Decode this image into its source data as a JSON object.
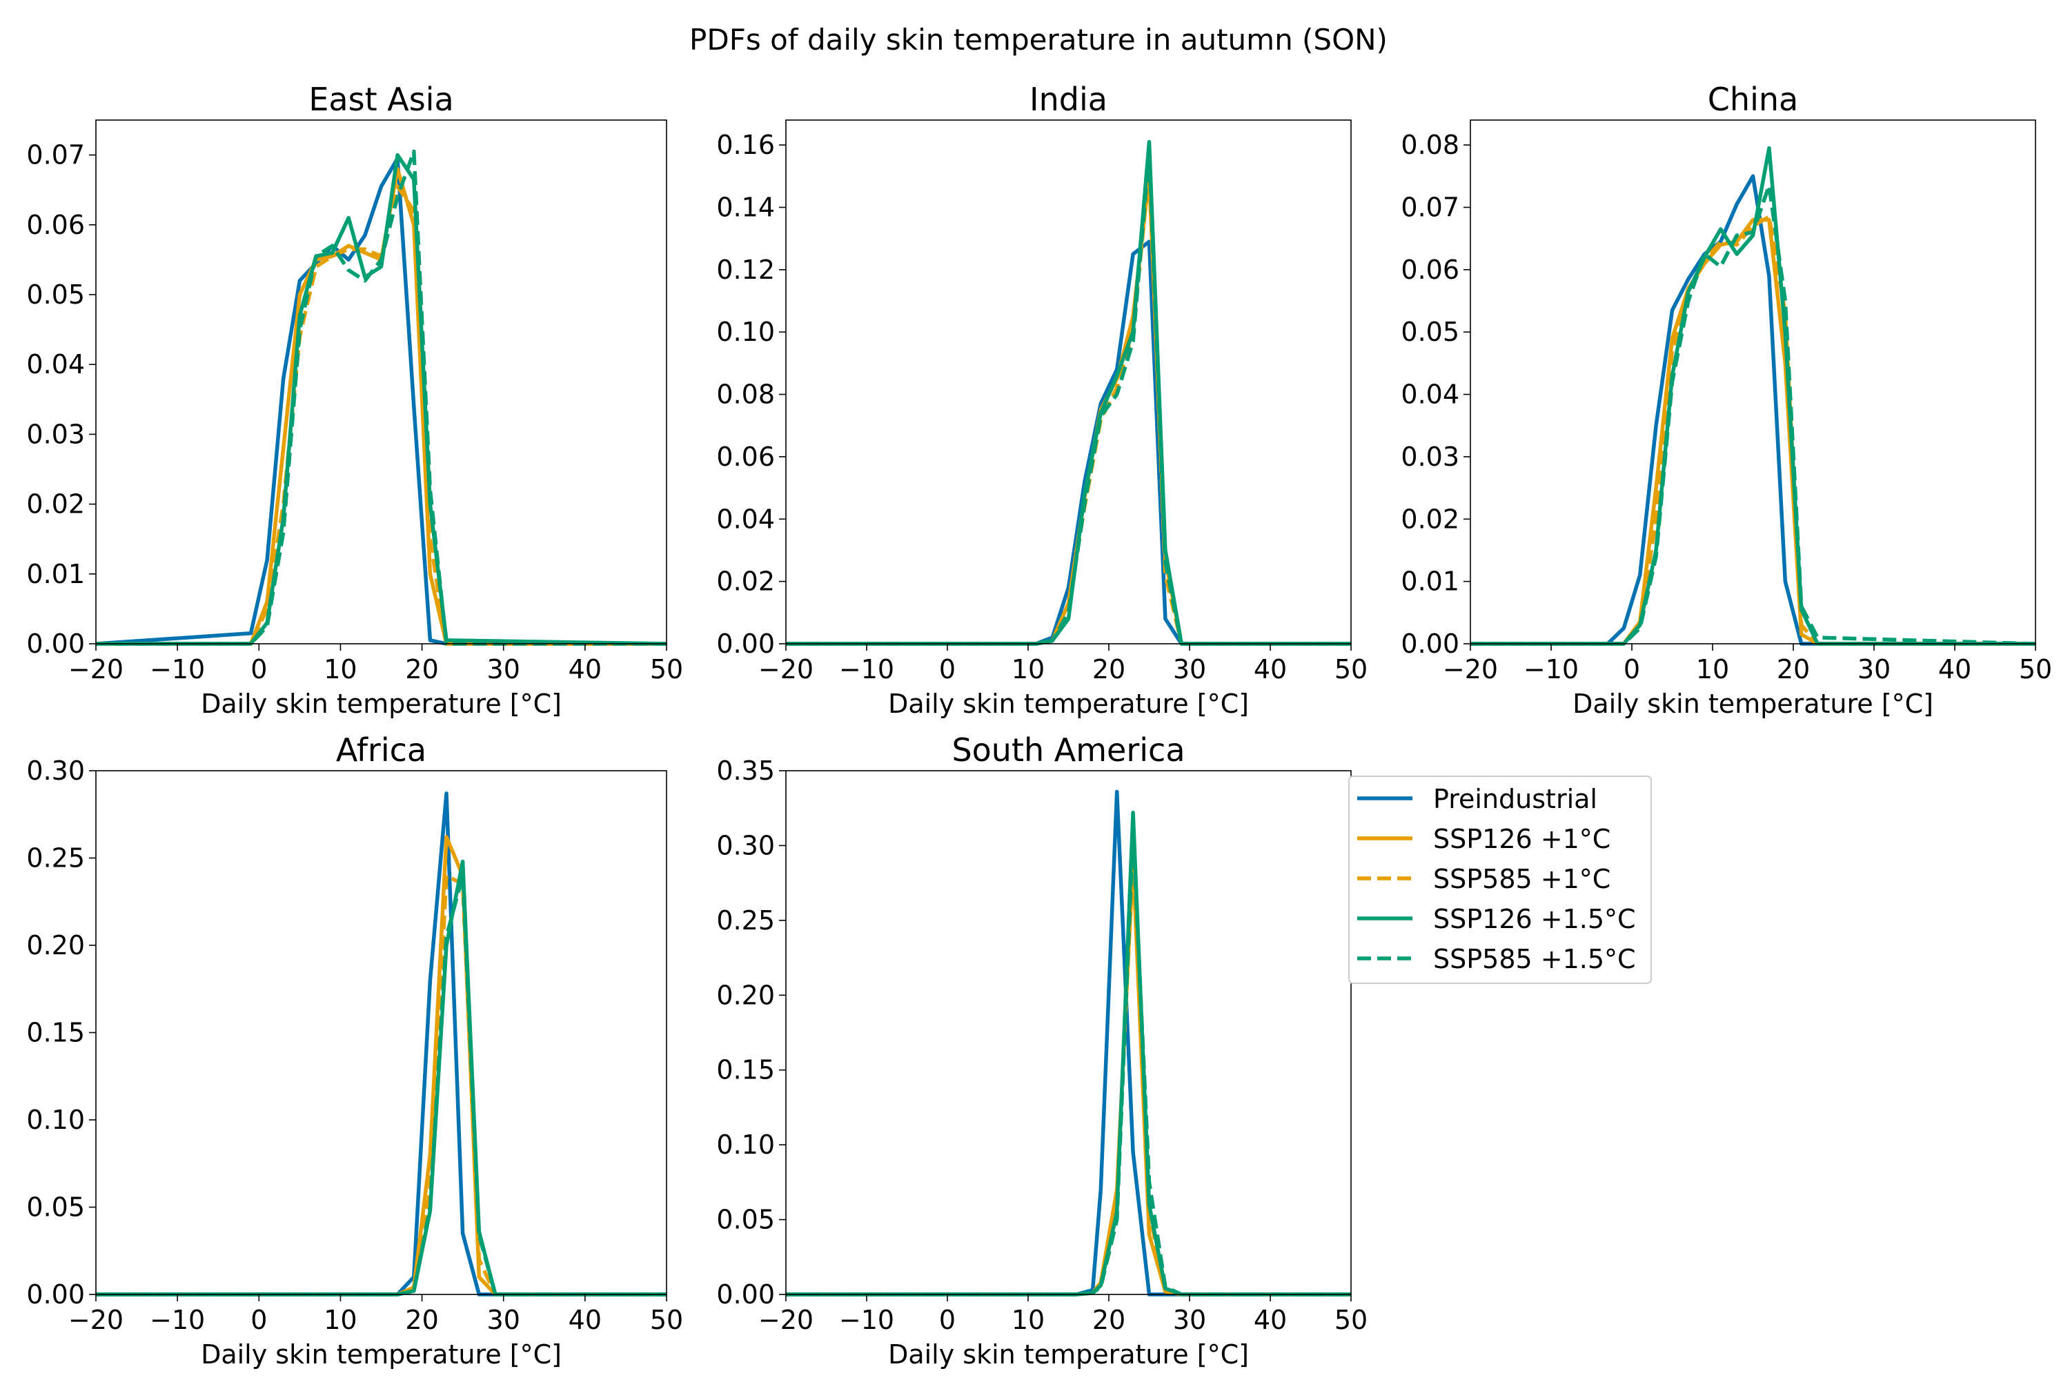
{
  "figure": {
    "suptitle": "PDFs of daily skin temperature in autumn (SON)"
  },
  "legend": {
    "entries": [
      {
        "label": "Preindustrial",
        "color": "#0072b2",
        "dash": false
      },
      {
        "label": "SSP126 +1°C",
        "color": "#e69f00",
        "dash": false
      },
      {
        "label": "SSP585 +1°C",
        "color": "#e69f00",
        "dash": true
      },
      {
        "label": "SSP126 +1.5°C",
        "color": "#009e73",
        "dash": false
      },
      {
        "label": "SSP585 +1.5°C",
        "color": "#009e73",
        "dash": true
      }
    ]
  },
  "chart_data": [
    {
      "type": "line",
      "title": "East Asia",
      "xlabel": "Daily skin temperature [°C]",
      "xlim": [
        -20,
        50
      ],
      "ylim": [
        0,
        0.075
      ],
      "xticks": [
        -20,
        -10,
        0,
        10,
        20,
        30,
        40,
        50
      ],
      "xticklabels": [
        "−20",
        "−10",
        "0",
        "10",
        "20",
        "30",
        "40",
        "50"
      ],
      "yticks": [
        0,
        0.01,
        0.02,
        0.03,
        0.04,
        0.05,
        0.06,
        0.07
      ],
      "yticklabels": [
        "0.00",
        "0.01",
        "0.02",
        "0.03",
        "0.04",
        "0.05",
        "0.06",
        "0.07"
      ],
      "x": [
        -20,
        -1,
        1,
        3,
        5,
        7,
        9,
        11,
        13,
        15,
        17,
        19,
        21,
        23,
        50
      ],
      "series": [
        {
          "name": "Preindustrial",
          "values": [
            0,
            0.0015,
            0.012,
            0.038,
            0.052,
            0.0545,
            0.057,
            0.055,
            0.0585,
            0.0655,
            0.0695,
            0.034,
            0.0005,
            0,
            0
          ]
        },
        {
          "name": "SSP126 +1°C",
          "values": [
            0,
            0,
            0.006,
            0.028,
            0.05,
            0.055,
            0.0555,
            0.057,
            0.056,
            0.055,
            0.068,
            0.06,
            0.01,
            0,
            0
          ]
        },
        {
          "name": "SSP585 +1°C",
          "values": [
            0,
            0,
            0.005,
            0.02,
            0.044,
            0.054,
            0.0555,
            0.0565,
            0.0565,
            0.0555,
            0.0655,
            0.062,
            0.015,
            0,
            0
          ]
        },
        {
          "name": "SSP126 +1.5°C",
          "values": [
            0,
            0,
            0.003,
            0.018,
            0.047,
            0.0555,
            0.056,
            0.061,
            0.0525,
            0.054,
            0.07,
            0.0665,
            0.02,
            0.0005,
            0
          ]
        },
        {
          "name": "SSP585 +1.5°C",
          "values": [
            0,
            0,
            0.0025,
            0.016,
            0.045,
            0.0555,
            0.057,
            0.0535,
            0.052,
            0.055,
            0.064,
            0.0705,
            0.022,
            0,
            0
          ]
        }
      ]
    },
    {
      "type": "line",
      "title": "India",
      "xlabel": "Daily skin temperature [°C]",
      "xlim": [
        -20,
        50
      ],
      "ylim": [
        0,
        0.168
      ],
      "xticks": [
        -20,
        -10,
        0,
        10,
        20,
        30,
        40,
        50
      ],
      "xticklabels": [
        "−20",
        "−10",
        "0",
        "10",
        "20",
        "30",
        "40",
        "50"
      ],
      "yticks": [
        0,
        0.02,
        0.04,
        0.06,
        0.08,
        0.1,
        0.12,
        0.14,
        0.16
      ],
      "yticklabels": [
        "0.00",
        "0.02",
        "0.04",
        "0.06",
        "0.08",
        "0.10",
        "0.12",
        "0.14",
        "0.16"
      ],
      "x": [
        -20,
        11,
        13,
        15,
        17,
        19,
        21,
        23,
        25,
        27,
        29,
        50
      ],
      "series": [
        {
          "name": "Preindustrial",
          "values": [
            0,
            0,
            0.002,
            0.018,
            0.052,
            0.077,
            0.088,
            0.125,
            0.129,
            0.008,
            0,
            0
          ]
        },
        {
          "name": "SSP126 +1°C",
          "values": [
            0,
            0,
            0.001,
            0.013,
            0.047,
            0.075,
            0.085,
            0.105,
            0.15,
            0.027,
            0,
            0
          ]
        },
        {
          "name": "SSP585 +1°C",
          "values": [
            0,
            0,
            0.001,
            0.012,
            0.044,
            0.072,
            0.082,
            0.1,
            0.152,
            0.022,
            0,
            0
          ]
        },
        {
          "name": "SSP126 +1.5°C",
          "values": [
            0,
            0,
            0.001,
            0.008,
            0.048,
            0.074,
            0.086,
            0.1,
            0.161,
            0.03,
            0,
            0
          ]
        },
        {
          "name": "SSP585 +1.5°C",
          "values": [
            0,
            0,
            0.001,
            0.01,
            0.045,
            0.073,
            0.08,
            0.097,
            0.158,
            0.026,
            0,
            0
          ]
        }
      ]
    },
    {
      "type": "line",
      "title": "China",
      "xlabel": "Daily skin temperature [°C]",
      "xlim": [
        -20,
        50
      ],
      "ylim": [
        0,
        0.084
      ],
      "xticks": [
        -20,
        -10,
        0,
        10,
        20,
        30,
        40,
        50
      ],
      "xticklabels": [
        "−20",
        "−10",
        "0",
        "10",
        "20",
        "30",
        "40",
        "50"
      ],
      "yticks": [
        0,
        0.01,
        0.02,
        0.03,
        0.04,
        0.05,
        0.06,
        0.07,
        0.08
      ],
      "yticklabels": [
        "0.00",
        "0.01",
        "0.02",
        "0.03",
        "0.04",
        "0.05",
        "0.06",
        "0.07",
        "0.08"
      ],
      "x": [
        -20,
        -3,
        -1,
        1,
        3,
        5,
        7,
        9,
        11,
        13,
        15,
        17,
        19,
        21,
        23,
        50
      ],
      "series": [
        {
          "name": "Preindustrial",
          "values": [
            0,
            0,
            0.0025,
            0.011,
            0.035,
            0.0535,
            0.0585,
            0.0625,
            0.0645,
            0.0705,
            0.075,
            0.059,
            0.01,
            0,
            0,
            0
          ]
        },
        {
          "name": "SSP126 +1°C",
          "values": [
            0,
            0,
            0,
            0.0035,
            0.025,
            0.049,
            0.057,
            0.061,
            0.064,
            0.0645,
            0.068,
            0.068,
            0.045,
            0.0015,
            0,
            0
          ]
        },
        {
          "name": "SSP585 +1°C",
          "values": [
            0,
            0,
            0,
            0.003,
            0.02,
            0.047,
            0.056,
            0.0615,
            0.0645,
            0.064,
            0.067,
            0.0685,
            0.053,
            0.003,
            0,
            0
          ]
        },
        {
          "name": "SSP126 +1.5°C",
          "values": [
            0,
            0,
            0,
            0.003,
            0.015,
            0.043,
            0.0565,
            0.062,
            0.0665,
            0.0625,
            0.0655,
            0.0795,
            0.05,
            0.0055,
            0,
            0
          ]
        },
        {
          "name": "SSP585 +1.5°C",
          "values": [
            0,
            0,
            0,
            0.0025,
            0.014,
            0.042,
            0.055,
            0.0625,
            0.0605,
            0.0655,
            0.066,
            0.0735,
            0.055,
            0.006,
            0.001,
            0
          ]
        }
      ]
    },
    {
      "type": "line",
      "title": "Africa",
      "xlabel": "Daily skin temperature [°C]",
      "xlim": [
        -20,
        50
      ],
      "ylim": [
        0,
        0.3
      ],
      "xticks": [
        -20,
        -10,
        0,
        10,
        20,
        30,
        40,
        50
      ],
      "xticklabels": [
        "−20",
        "−10",
        "0",
        "10",
        "20",
        "30",
        "40",
        "50"
      ],
      "yticks": [
        0,
        0.05,
        0.1,
        0.15,
        0.2,
        0.25,
        0.3
      ],
      "yticklabels": [
        "0.00",
        "0.05",
        "0.10",
        "0.15",
        "0.20",
        "0.25",
        "0.30"
      ],
      "x": [
        -20,
        17,
        19,
        21,
        23,
        25,
        27,
        29,
        50
      ],
      "series": [
        {
          "name": "Preindustrial",
          "values": [
            0,
            0,
            0.01,
            0.18,
            0.287,
            0.035,
            0,
            0,
            0
          ]
        },
        {
          "name": "SSP126 +1°C",
          "values": [
            0,
            0,
            0.004,
            0.08,
            0.262,
            0.24,
            0.01,
            0,
            0
          ]
        },
        {
          "name": "SSP585 +1°C",
          "values": [
            0,
            0,
            0.003,
            0.06,
            0.24,
            0.235,
            0.02,
            0,
            0
          ]
        },
        {
          "name": "SSP126 +1.5°C",
          "values": [
            0,
            0,
            0.002,
            0.048,
            0.2,
            0.248,
            0.036,
            0,
            0
          ]
        },
        {
          "name": "SSP585 +1.5°C",
          "values": [
            0,
            0,
            0.002,
            0.05,
            0.205,
            0.24,
            0.034,
            0,
            0
          ]
        }
      ]
    },
    {
      "type": "line",
      "title": "South America",
      "xlabel": "Daily skin temperature [°C]",
      "xlim": [
        -20,
        50
      ],
      "ylim": [
        0,
        0.35
      ],
      "xticks": [
        -20,
        -10,
        0,
        10,
        20,
        30,
        40,
        50
      ],
      "xticklabels": [
        "−20",
        "−10",
        "0",
        "10",
        "20",
        "30",
        "40",
        "50"
      ],
      "yticks": [
        0,
        0.05,
        0.1,
        0.15,
        0.2,
        0.25,
        0.3,
        0.35
      ],
      "yticklabels": [
        "0.00",
        "0.05",
        "0.10",
        "0.15",
        "0.20",
        "0.25",
        "0.30",
        "0.35"
      ],
      "x": [
        -20,
        16,
        18,
        19,
        21,
        23,
        25,
        27,
        29,
        50
      ],
      "series": [
        {
          "name": "Preindustrial",
          "values": [
            0,
            0,
            0.003,
            0.07,
            0.336,
            0.095,
            0,
            0,
            0,
            0
          ]
        },
        {
          "name": "SSP126 +1°C",
          "values": [
            0,
            0,
            0.001,
            0.008,
            0.07,
            0.29,
            0.04,
            0.002,
            0,
            0
          ]
        },
        {
          "name": "SSP585 +1°C",
          "values": [
            0,
            0,
            0.001,
            0.006,
            0.06,
            0.3,
            0.055,
            0.003,
            0,
            0
          ]
        },
        {
          "name": "SSP126 +1.5°C",
          "values": [
            0,
            0,
            0.001,
            0.006,
            0.055,
            0.322,
            0.06,
            0.004,
            0,
            0
          ]
        },
        {
          "name": "SSP585 +1.5°C",
          "values": [
            0,
            0,
            0.001,
            0.005,
            0.05,
            0.31,
            0.075,
            0.005,
            0,
            0
          ]
        }
      ]
    }
  ]
}
